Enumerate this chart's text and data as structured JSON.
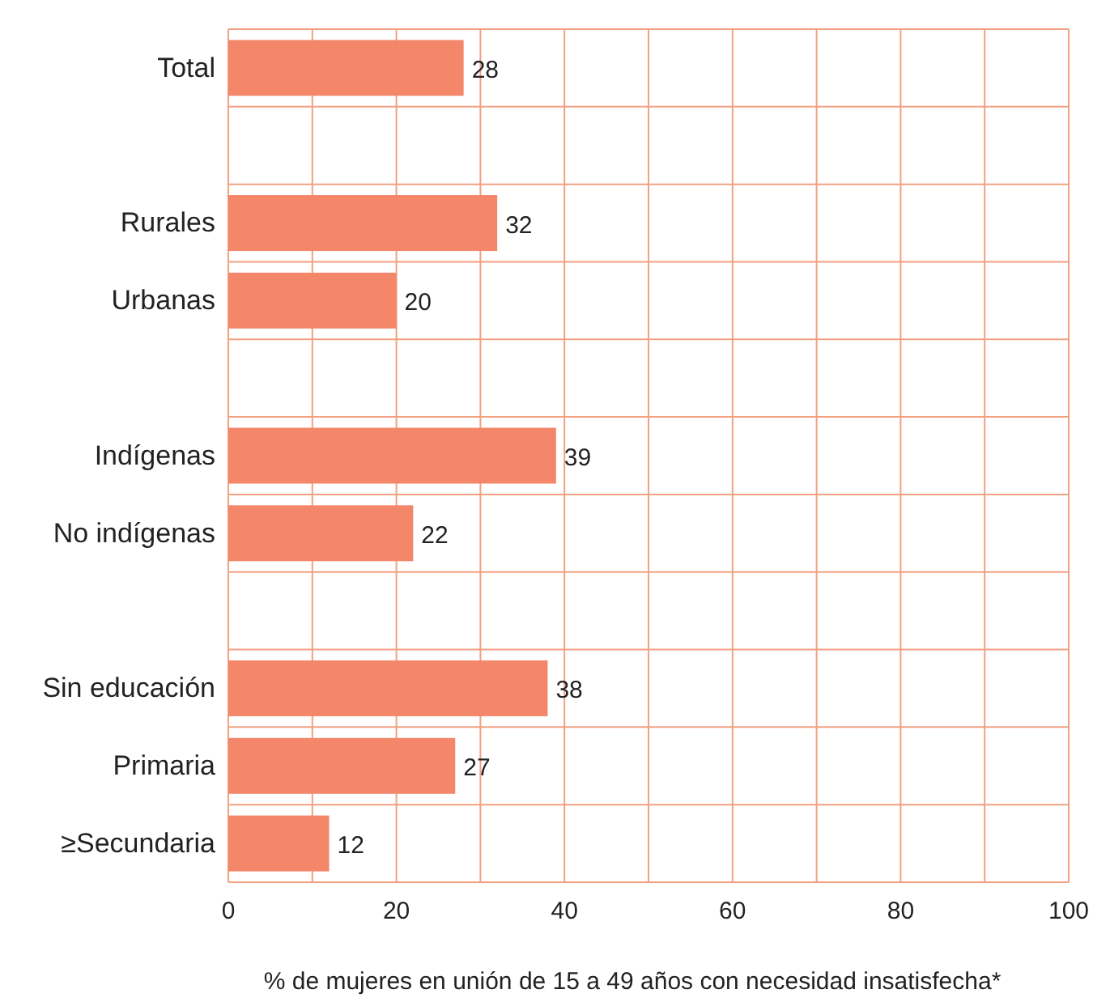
{
  "chart_data": {
    "type": "bar",
    "orientation": "horizontal",
    "xlabel": "% de mujeres en unión de 15 a 49 años con necesidad insatisfecha*",
    "categories": [
      "Total",
      null,
      "Rurales",
      "Urbanas",
      null,
      "Indígenas",
      "No indígenas",
      null,
      "Sin educación",
      "Primaria",
      "≥Secundaria"
    ],
    "values": [
      28,
      null,
      32,
      20,
      null,
      39,
      22,
      null,
      38,
      27,
      12
    ],
    "color": "#f4866a",
    "data_labels": true,
    "grid": true,
    "xlim": [
      0,
      100
    ],
    "xticks": [
      0,
      {
        "value": 10,
        "label": null
      },
      20,
      {
        "value": 30,
        "label": null
      },
      40,
      {
        "value": 50,
        "label": null
      },
      60,
      {
        "value": 70,
        "label": null
      },
      80,
      {
        "value": 90,
        "label": null
      },
      100
    ]
  }
}
